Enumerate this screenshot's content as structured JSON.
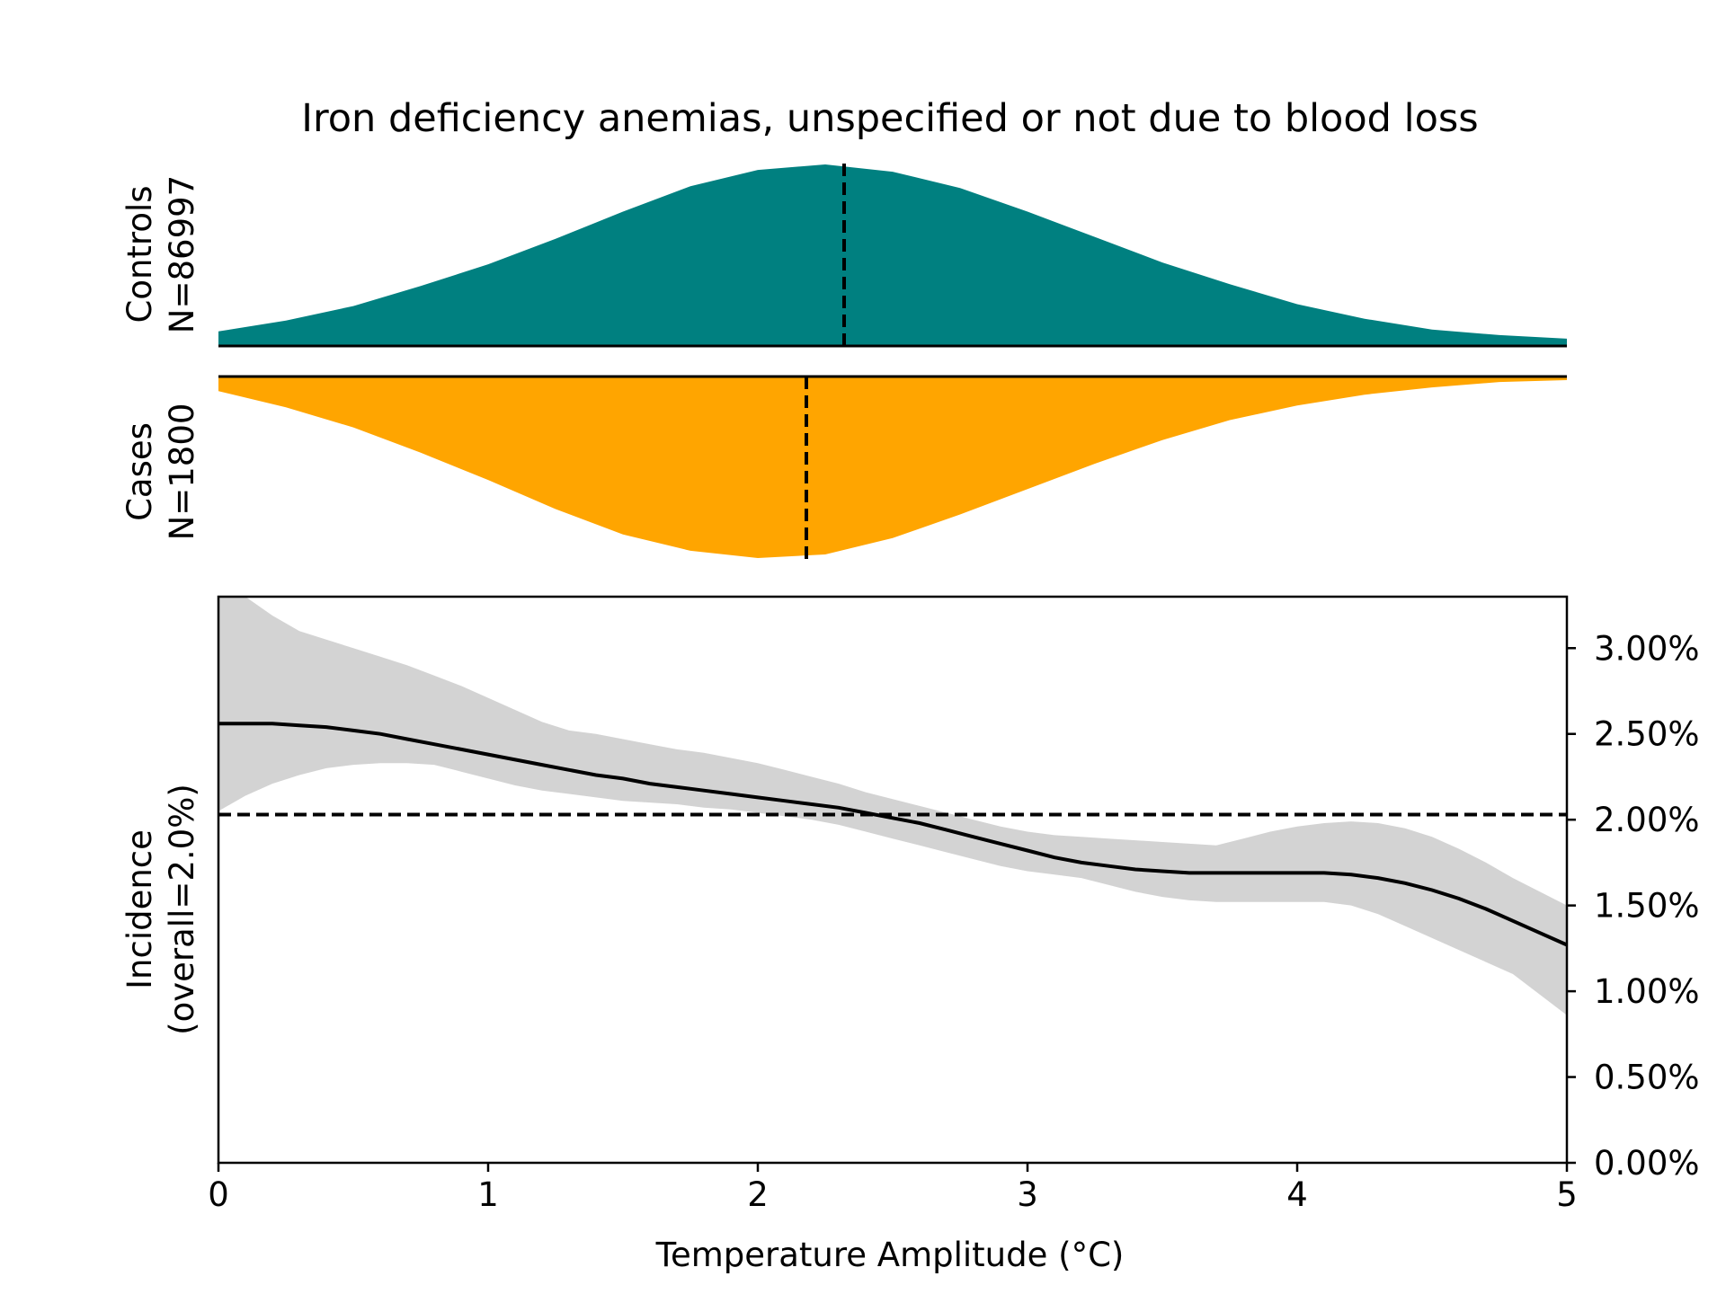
{
  "chart_data": {
    "type": "area",
    "title": "Iron deficiency anemias, unspecified or not due to blood loss",
    "xlabel": "Temperature Amplitude (°C)",
    "xlim": [
      0,
      5
    ],
    "x_ticks": [
      0,
      1,
      2,
      3,
      4,
      5
    ],
    "x_tick_labels": [
      "0",
      "1",
      "2",
      "3",
      "4",
      "5"
    ],
    "distributions": [
      {
        "label_line1": "Controls",
        "label_line2": "N=86997",
        "color": "#008080",
        "direction": "up",
        "median": 2.32,
        "x": [
          0,
          0.25,
          0.5,
          0.75,
          1,
          1.25,
          1.5,
          1.75,
          2,
          2.25,
          2.5,
          2.75,
          3,
          3.25,
          3.5,
          3.75,
          4,
          4.25,
          4.5,
          4.75,
          5
        ],
        "density": [
          0.08,
          0.14,
          0.22,
          0.33,
          0.45,
          0.59,
          0.74,
          0.88,
          0.97,
          1.0,
          0.96,
          0.87,
          0.74,
          0.6,
          0.46,
          0.34,
          0.23,
          0.15,
          0.09,
          0.06,
          0.04
        ]
      },
      {
        "label_line1": "Cases",
        "label_line2": "N=1800",
        "color": "#ffa500",
        "direction": "down",
        "median": 2.18,
        "x": [
          0,
          0.25,
          0.5,
          0.75,
          1,
          1.25,
          1.5,
          1.75,
          2,
          2.25,
          2.5,
          2.75,
          3,
          3.25,
          3.5,
          3.75,
          4,
          4.25,
          4.5,
          4.75,
          5
        ],
        "density": [
          0.08,
          0.17,
          0.28,
          0.42,
          0.57,
          0.73,
          0.87,
          0.96,
          1.0,
          0.98,
          0.89,
          0.76,
          0.62,
          0.48,
          0.35,
          0.24,
          0.16,
          0.1,
          0.06,
          0.03,
          0.02
        ]
      }
    ],
    "incidence": {
      "ylabel_line1": "Incidence",
      "ylabel_line2": "(overall=2.0%)",
      "ylim": [
        0,
        3.3
      ],
      "y_ticks": [
        0,
        0.5,
        1,
        1.5,
        2,
        2.5,
        3
      ],
      "y_tick_labels": [
        "0.00%",
        "0.50%",
        "1.00%",
        "1.50%",
        "2.00%",
        "2.50%",
        "3.00%"
      ],
      "overall": 2.03,
      "line_color": "#000000",
      "band_color": "#d3d3d3",
      "x": [
        0,
        0.1,
        0.2,
        0.3,
        0.4,
        0.5,
        0.6,
        0.7,
        0.8,
        0.9,
        1.0,
        1.1,
        1.2,
        1.3,
        1.4,
        1.5,
        1.6,
        1.7,
        1.8,
        1.9,
        2.0,
        2.1,
        2.2,
        2.3,
        2.4,
        2.5,
        2.6,
        2.7,
        2.8,
        2.9,
        3.0,
        3.1,
        3.2,
        3.3,
        3.4,
        3.5,
        3.6,
        3.7,
        3.8,
        3.9,
        4.0,
        4.1,
        4.2,
        4.3,
        4.4,
        4.5,
        4.6,
        4.7,
        4.8,
        4.9,
        5.0
      ],
      "y": [
        2.56,
        2.56,
        2.56,
        2.55,
        2.54,
        2.52,
        2.5,
        2.47,
        2.44,
        2.41,
        2.38,
        2.35,
        2.32,
        2.29,
        2.26,
        2.24,
        2.21,
        2.19,
        2.17,
        2.15,
        2.13,
        2.11,
        2.09,
        2.07,
        2.04,
        2.01,
        1.98,
        1.94,
        1.9,
        1.86,
        1.82,
        1.78,
        1.75,
        1.73,
        1.71,
        1.7,
        1.69,
        1.69,
        1.69,
        1.69,
        1.69,
        1.69,
        1.68,
        1.66,
        1.63,
        1.59,
        1.54,
        1.48,
        1.41,
        1.34,
        1.27
      ],
      "upper": [
        3.3,
        3.3,
        3.19,
        3.1,
        3.05,
        3.0,
        2.95,
        2.9,
        2.84,
        2.78,
        2.71,
        2.64,
        2.57,
        2.52,
        2.5,
        2.47,
        2.44,
        2.41,
        2.39,
        2.36,
        2.33,
        2.29,
        2.25,
        2.21,
        2.16,
        2.12,
        2.08,
        2.04,
        2.0,
        1.96,
        1.93,
        1.91,
        1.9,
        1.89,
        1.88,
        1.87,
        1.86,
        1.85,
        1.89,
        1.93,
        1.96,
        1.98,
        1.99,
        1.98,
        1.95,
        1.9,
        1.83,
        1.75,
        1.66,
        1.58,
        1.5
      ],
      "lower": [
        2.05,
        2.14,
        2.21,
        2.26,
        2.3,
        2.32,
        2.33,
        2.33,
        2.32,
        2.28,
        2.24,
        2.2,
        2.17,
        2.15,
        2.13,
        2.11,
        2.1,
        2.09,
        2.07,
        2.06,
        2.04,
        2.02,
        2.0,
        1.97,
        1.93,
        1.89,
        1.85,
        1.81,
        1.77,
        1.73,
        1.7,
        1.68,
        1.66,
        1.62,
        1.58,
        1.55,
        1.53,
        1.52,
        1.52,
        1.52,
        1.52,
        1.52,
        1.5,
        1.45,
        1.38,
        1.31,
        1.24,
        1.17,
        1.1,
        0.98,
        0.86
      ]
    }
  }
}
